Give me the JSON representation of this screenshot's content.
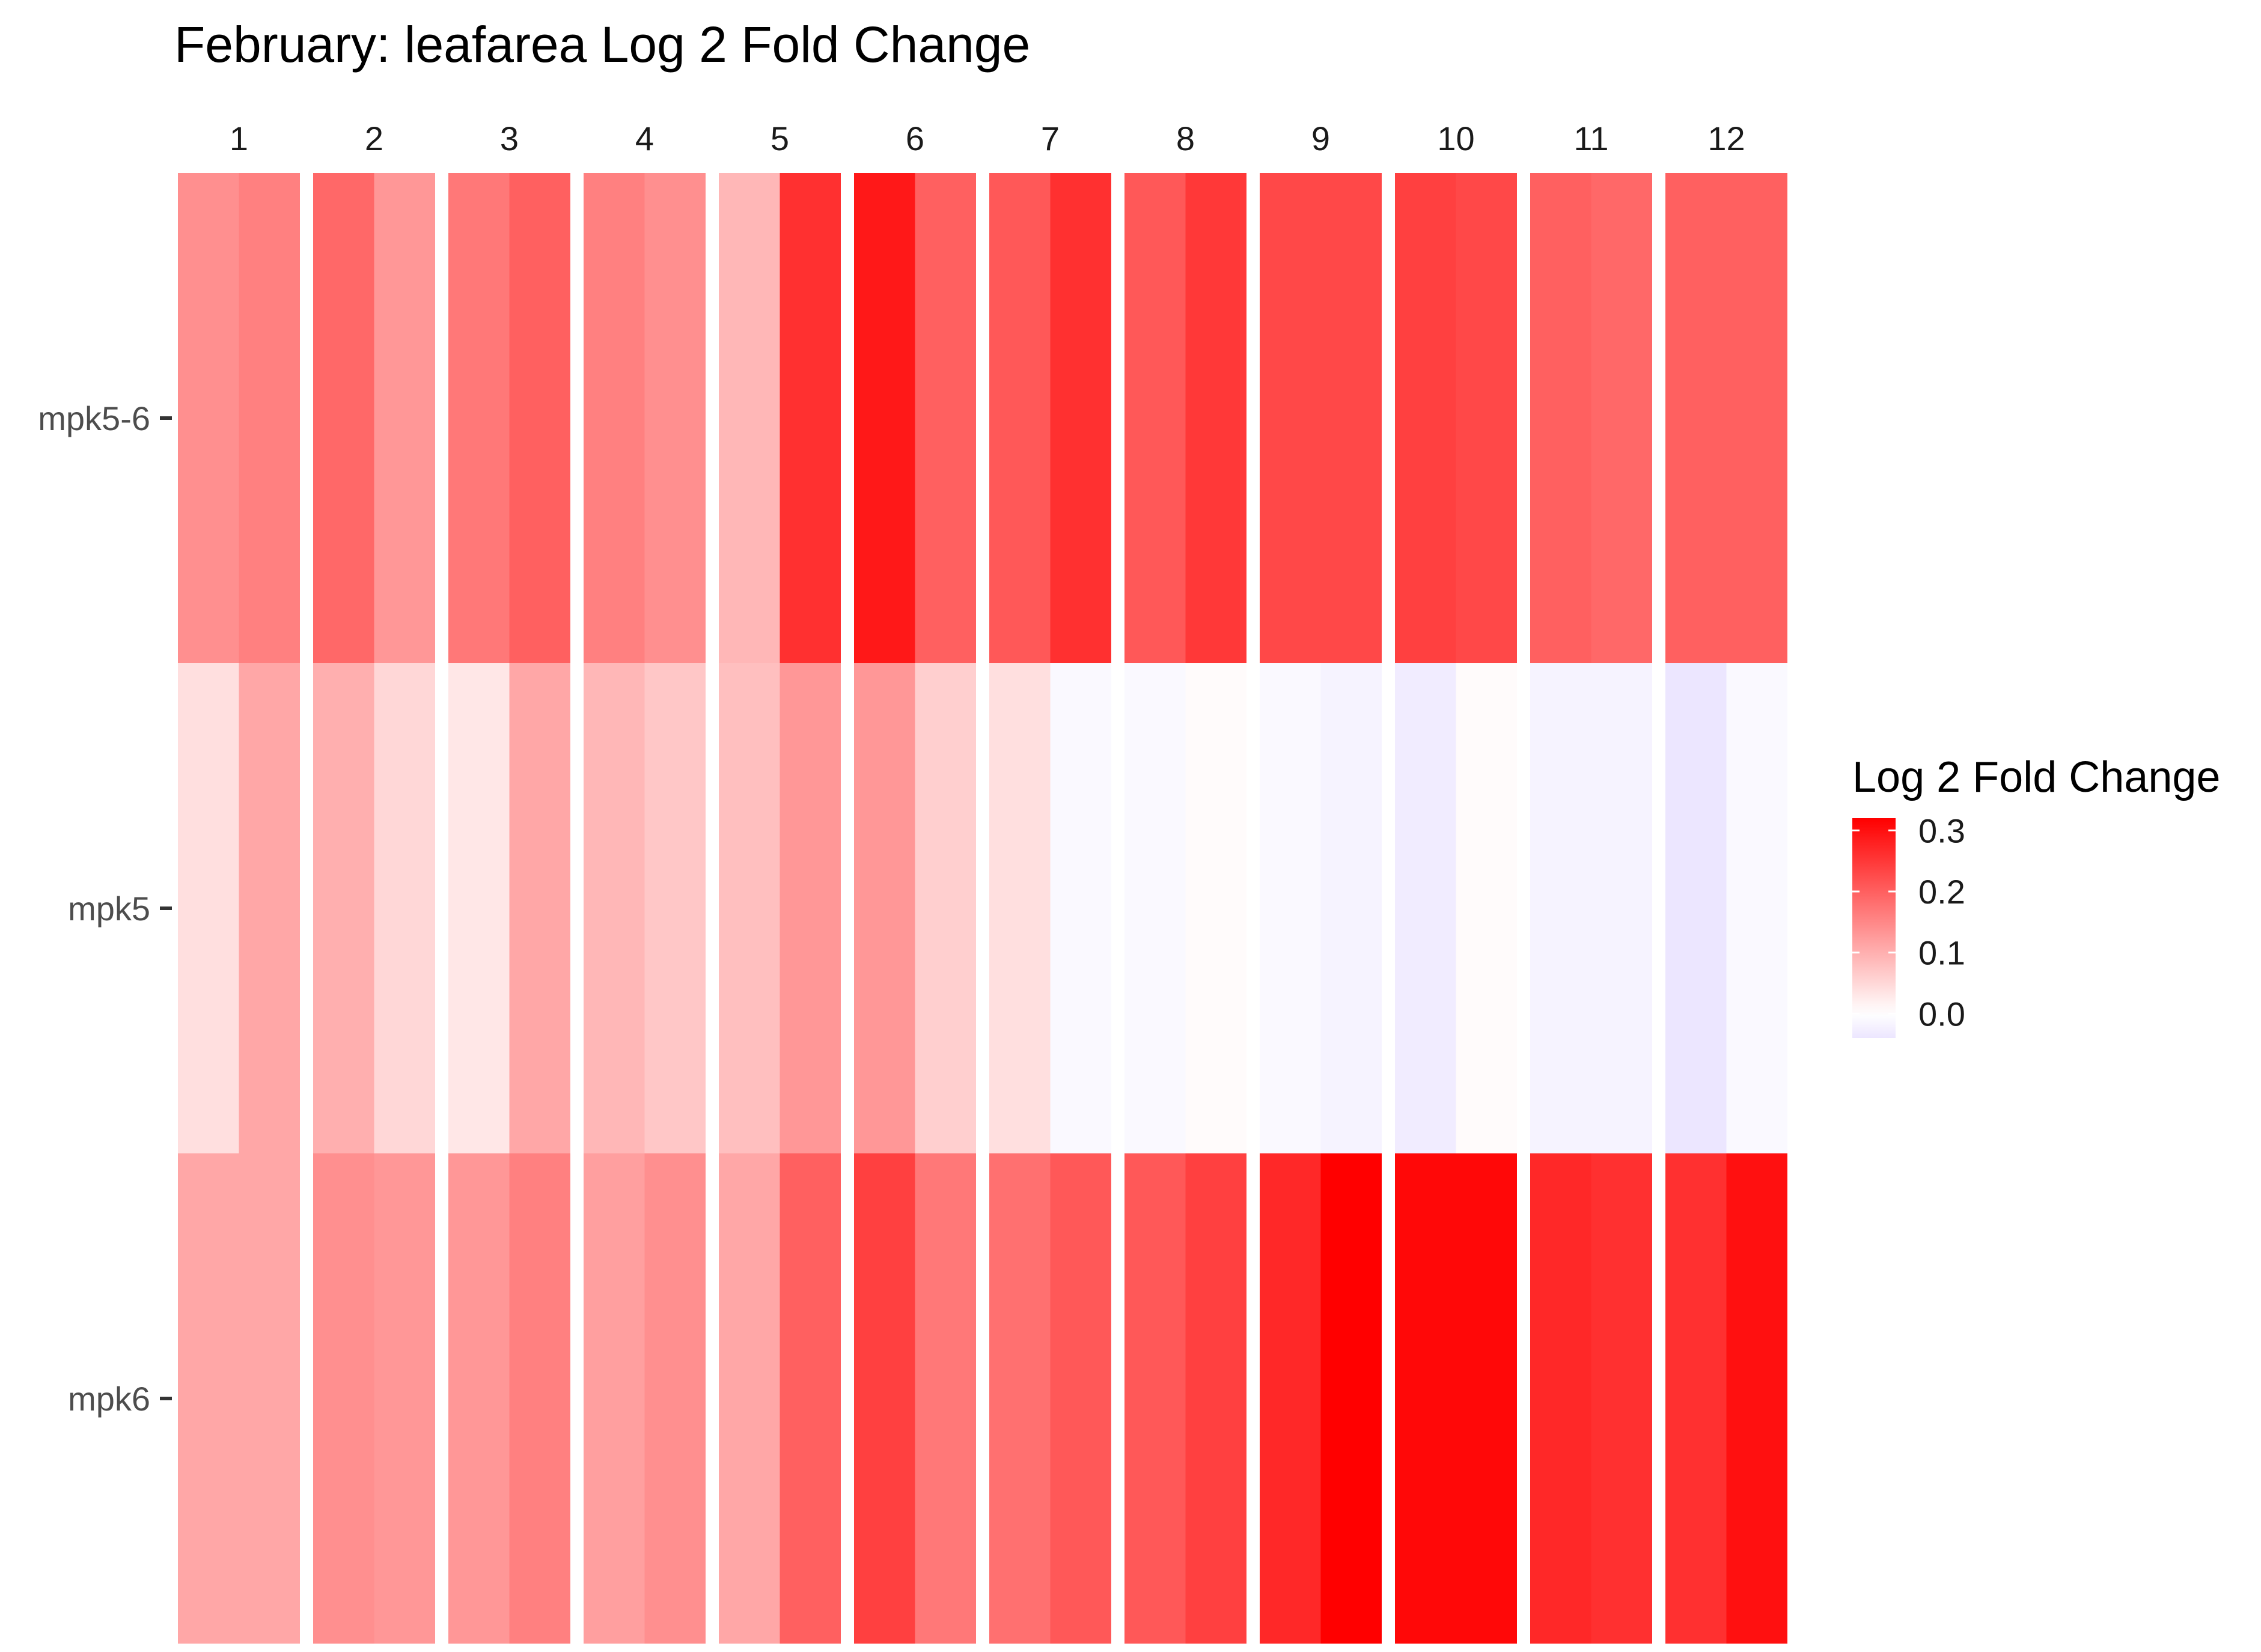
{
  "chart_data": {
    "type": "heatmap",
    "title": "February: leafarea Log 2 Fold Change",
    "facets": [
      "1",
      "2",
      "3",
      "4",
      "5",
      "6",
      "7",
      "8",
      "9",
      "10",
      "11",
      "12"
    ],
    "rows": [
      "mpk5-6",
      "mpk5",
      "mpk6"
    ],
    "cells_per_facet": 2,
    "values": {
      "mpk5-6": [
        [
          0.14,
          0.16
        ],
        [
          0.19,
          0.13
        ],
        [
          0.17,
          0.2
        ],
        [
          0.16,
          0.14
        ],
        [
          0.09,
          0.26
        ],
        [
          0.29,
          0.2
        ],
        [
          0.21,
          0.26
        ],
        [
          0.21,
          0.25
        ],
        [
          0.23,
          0.23
        ],
        [
          0.24,
          0.23
        ],
        [
          0.2,
          0.19
        ],
        [
          0.2,
          0.2
        ]
      ],
      "mpk5": [
        [
          0.04,
          0.11
        ],
        [
          0.1,
          0.05
        ],
        [
          0.03,
          0.11
        ],
        [
          0.09,
          0.07
        ],
        [
          0.08,
          0.13
        ],
        [
          0.13,
          0.06
        ],
        [
          0.04,
          -0.01
        ],
        [
          -0.01,
          0.005
        ],
        [
          -0.01,
          -0.02
        ],
        [
          -0.03,
          0.005
        ],
        [
          -0.02,
          -0.02
        ],
        [
          -0.04,
          -0.01
        ]
      ],
      "mpk6": [
        [
          0.11,
          0.11
        ],
        [
          0.14,
          0.13
        ],
        [
          0.13,
          0.16
        ],
        [
          0.12,
          0.14
        ],
        [
          0.11,
          0.2
        ],
        [
          0.24,
          0.17
        ],
        [
          0.18,
          0.21
        ],
        [
          0.21,
          0.24
        ],
        [
          0.27,
          0.32
        ],
        [
          0.31,
          0.31
        ],
        [
          0.27,
          0.26
        ],
        [
          0.26,
          0.3
        ]
      ]
    },
    "legend": {
      "title": "Log 2 Fold Change",
      "ticks": [
        0.3,
        0.2,
        0.1,
        0.0
      ],
      "tick_labels": [
        "0.3",
        "0.2",
        "0.1",
        "0.0"
      ],
      "range": [
        -0.04,
        0.32
      ],
      "placement": "right",
      "low_color": "#ece6ff",
      "mid_color": "#ffffff",
      "high_color": "#ff0000"
    },
    "grid": false
  }
}
